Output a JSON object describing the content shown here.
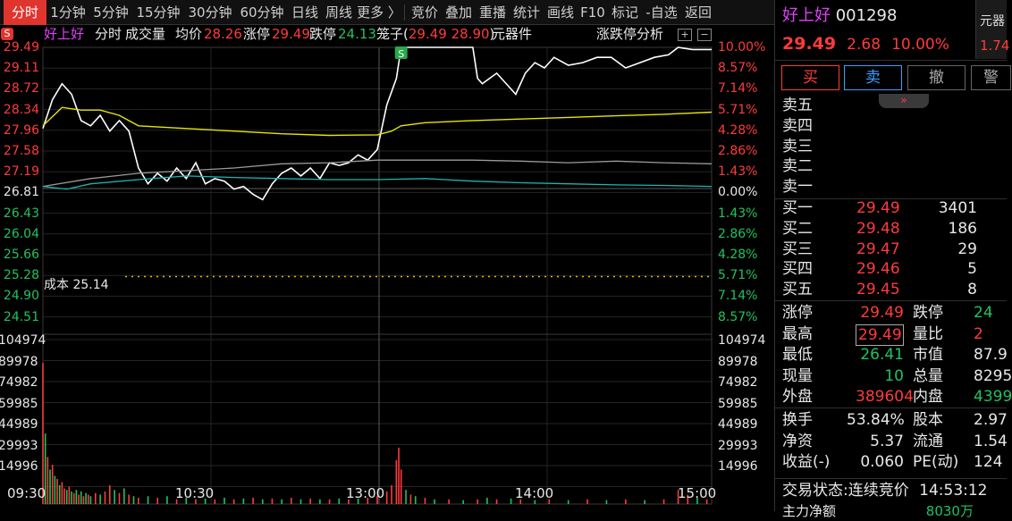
{
  "toolbar": {
    "tabs": [
      {
        "label": "分时",
        "active": true
      },
      {
        "label": "1分钟"
      },
      {
        "label": "5分钟"
      },
      {
        "label": "15分钟"
      },
      {
        "label": "30分钟"
      },
      {
        "label": "60分钟"
      },
      {
        "label": "日线"
      },
      {
        "label": "周线"
      },
      {
        "label": "更多 〉"
      },
      {
        "label": "竞价"
      },
      {
        "label": "叠加"
      },
      {
        "label": "重播"
      },
      {
        "label": "统计"
      },
      {
        "label": "画线"
      },
      {
        "label": "F10"
      },
      {
        "label": "标记"
      },
      {
        "label": "-自选"
      },
      {
        "label": "返回"
      }
    ]
  },
  "chart_header": {
    "badge": "S",
    "stock_name": "好上好",
    "mode": "分时",
    "volume_label": "成交量",
    "avg_label": "均价",
    "avg_value": "28.26",
    "limit_up_label": "涨停",
    "limit_up_value": "29.49",
    "limit_down_label": "跌停",
    "limit_down_value": "24.13",
    "cage_prefix": "笼子(",
    "cage_v1": "29.49",
    "cage_v2": "28.90",
    "cage_suffix": ")",
    "tool": "元器件",
    "analysis": "涨跌停分析",
    "icon_plus": "+",
    "icon_minus": "−"
  },
  "price_axis": [
    {
      "price": "29.49",
      "pct": "10.00%",
      "dir": "up"
    },
    {
      "price": "29.11",
      "pct": "8.57%",
      "dir": "up"
    },
    {
      "price": "28.72",
      "pct": "7.14%",
      "dir": "up"
    },
    {
      "price": "28.34",
      "pct": "5.71%",
      "dir": "up"
    },
    {
      "price": "27.96",
      "pct": "4.28%",
      "dir": "up"
    },
    {
      "price": "27.58",
      "pct": "2.86%",
      "dir": "up"
    },
    {
      "price": "27.19",
      "pct": "1.43%",
      "dir": "up"
    },
    {
      "price": "26.81",
      "pct": "0.00%",
      "dir": "flat"
    },
    {
      "price": "26.43",
      "pct": "1.43%",
      "dir": "down"
    },
    {
      "price": "26.04",
      "pct": "2.86%",
      "dir": "down"
    },
    {
      "price": "25.66",
      "pct": "4.28%",
      "dir": "down"
    },
    {
      "price": "25.28",
      "pct": "5.71%",
      "dir": "down"
    },
    {
      "price": "24.90",
      "pct": "7.14%",
      "dir": "down"
    },
    {
      "price": "24.51",
      "pct": "8.57%",
      "dir": "down"
    }
  ],
  "volume_axis": [
    "104974",
    "89978",
    "74982",
    "59985",
    "44989",
    "29993",
    "14996"
  ],
  "time_axis": [
    "09:30",
    "10:30",
    "13:00",
    "14:00",
    "15:00"
  ],
  "cost_line": {
    "label": "成本 25.14",
    "price": 25.14
  },
  "signal_marker": "S",
  "colors": {
    "up": "#ff3b3b",
    "down": "#21c25e",
    "price_line": "#ffffff",
    "avg_line": "#e6e600",
    "gray_line": "#9a9a9a",
    "cyan_line": "#19b6b6",
    "toolbar_active": "#e0342e"
  },
  "chart_data": {
    "type": "line",
    "x_range": [
      "09:30",
      "15:00"
    ],
    "ylim": [
      24.13,
      29.49
    ],
    "prev_close": 26.81,
    "series": [
      {
        "name": "price",
        "points": [
          [
            0,
            27.95
          ],
          [
            4,
            28.5
          ],
          [
            8,
            28.8
          ],
          [
            12,
            28.6
          ],
          [
            16,
            28.1
          ],
          [
            20,
            28.0
          ],
          [
            24,
            28.2
          ],
          [
            28,
            27.9
          ],
          [
            32,
            28.1
          ],
          [
            36,
            27.9
          ],
          [
            40,
            27.2
          ],
          [
            44,
            26.9
          ],
          [
            48,
            27.1
          ],
          [
            52,
            26.95
          ],
          [
            56,
            27.2
          ],
          [
            60,
            27.0
          ],
          [
            64,
            27.3
          ],
          [
            68,
            26.9
          ],
          [
            72,
            27.0
          ],
          [
            76,
            26.95
          ],
          [
            80,
            26.8
          ],
          [
            84,
            26.85
          ],
          [
            88,
            26.7
          ],
          [
            92,
            26.6
          ],
          [
            96,
            26.9
          ],
          [
            100,
            27.1
          ],
          [
            104,
            27.2
          ],
          [
            108,
            27.05
          ],
          [
            112,
            27.2
          ],
          [
            116,
            27.0
          ],
          [
            120,
            27.3
          ],
          [
            124,
            27.25
          ],
          [
            128,
            27.3
          ],
          [
            132,
            27.45
          ],
          [
            136,
            27.35
          ],
          [
            140,
            27.55
          ],
          [
            144,
            28.4
          ],
          [
            148,
            28.9
          ],
          [
            150,
            29.49
          ],
          [
            160,
            29.49
          ],
          [
            170,
            29.49
          ],
          [
            180,
            29.49
          ],
          [
            182,
            28.9
          ],
          [
            184,
            28.8
          ],
          [
            190,
            29.0
          ],
          [
            196,
            28.7
          ],
          [
            198,
            28.6
          ],
          [
            202,
            29.0
          ],
          [
            206,
            29.2
          ],
          [
            210,
            29.1
          ],
          [
            214,
            29.3
          ],
          [
            220,
            29.15
          ],
          [
            226,
            29.2
          ],
          [
            232,
            29.3
          ],
          [
            238,
            29.3
          ],
          [
            244,
            29.1
          ],
          [
            250,
            29.2
          ],
          [
            256,
            29.3
          ],
          [
            262,
            29.35
          ],
          [
            266,
            29.49
          ],
          [
            272,
            29.45
          ],
          [
            280,
            29.45
          ]
        ]
      },
      {
        "name": "avg",
        "points": [
          [
            0,
            28.0
          ],
          [
            8,
            28.35
          ],
          [
            16,
            28.3
          ],
          [
            24,
            28.3
          ],
          [
            32,
            28.2
          ],
          [
            40,
            28.0
          ],
          [
            60,
            27.95
          ],
          [
            80,
            27.9
          ],
          [
            100,
            27.85
          ],
          [
            120,
            27.82
          ],
          [
            140,
            27.83
          ],
          [
            146,
            27.9
          ],
          [
            150,
            28.0
          ],
          [
            160,
            28.06
          ],
          [
            180,
            28.1
          ],
          [
            200,
            28.13
          ],
          [
            220,
            28.16
          ],
          [
            240,
            28.19
          ],
          [
            260,
            28.22
          ],
          [
            280,
            28.26
          ]
        ]
      },
      {
        "name": "series_gray",
        "points": [
          [
            0,
            26.85
          ],
          [
            20,
            27.0
          ],
          [
            40,
            27.1
          ],
          [
            60,
            27.15
          ],
          [
            80,
            27.2
          ],
          [
            100,
            27.28
          ],
          [
            120,
            27.3
          ],
          [
            140,
            27.35
          ],
          [
            160,
            27.35
          ],
          [
            180,
            27.35
          ],
          [
            200,
            27.33
          ],
          [
            220,
            27.3
          ],
          [
            240,
            27.33
          ],
          [
            260,
            27.3
          ],
          [
            280,
            27.28
          ]
        ]
      },
      {
        "name": "series_cyan",
        "points": [
          [
            0,
            26.85
          ],
          [
            10,
            26.8
          ],
          [
            20,
            26.9
          ],
          [
            40,
            26.98
          ],
          [
            60,
            27.05
          ],
          [
            80,
            27.02
          ],
          [
            100,
            27.0
          ],
          [
            120,
            26.98
          ],
          [
            140,
            26.98
          ],
          [
            160,
            27.0
          ],
          [
            180,
            26.95
          ],
          [
            200,
            26.92
          ],
          [
            220,
            26.9
          ],
          [
            240,
            26.88
          ],
          [
            260,
            26.87
          ],
          [
            280,
            26.85
          ]
        ]
      }
    ],
    "volume": {
      "max": 104974,
      "bars": [
        [
          0,
          90000,
          "up"
        ],
        [
          1,
          45000,
          "down"
        ],
        [
          2,
          30000,
          "up"
        ],
        [
          3,
          22000,
          "down"
        ],
        [
          4,
          25000,
          "up"
        ],
        [
          5,
          18000,
          "down"
        ],
        [
          6,
          16000,
          "up"
        ],
        [
          7,
          12000,
          "down"
        ],
        [
          8,
          14000,
          "up"
        ],
        [
          9,
          10000,
          "up"
        ],
        [
          10,
          9000,
          "down"
        ],
        [
          11,
          11000,
          "up"
        ],
        [
          12,
          8000,
          "down"
        ],
        [
          13,
          7000,
          "up"
        ],
        [
          14,
          9000,
          "down"
        ],
        [
          15,
          6000,
          "up"
        ],
        [
          16,
          8000,
          "down"
        ],
        [
          17,
          5000,
          "up"
        ],
        [
          18,
          7000,
          "down"
        ],
        [
          19,
          6000,
          "up"
        ],
        [
          20,
          5000,
          "down"
        ],
        [
          22,
          7000,
          "up"
        ],
        [
          24,
          6000,
          "down"
        ],
        [
          26,
          8000,
          "up"
        ],
        [
          28,
          12000,
          "up"
        ],
        [
          30,
          9000,
          "down"
        ],
        [
          32,
          7000,
          "up"
        ],
        [
          34,
          10000,
          "down"
        ],
        [
          36,
          6000,
          "up"
        ],
        [
          38,
          5000,
          "down"
        ],
        [
          40,
          4000,
          "up"
        ],
        [
          44,
          5000,
          "down"
        ],
        [
          48,
          4000,
          "up"
        ],
        [
          52,
          5000,
          "down"
        ],
        [
          56,
          3000,
          "up"
        ],
        [
          60,
          4000,
          "down"
        ],
        [
          64,
          3000,
          "up"
        ],
        [
          68,
          3500,
          "down"
        ],
        [
          72,
          3000,
          "up"
        ],
        [
          76,
          4000,
          "down"
        ],
        [
          80,
          3000,
          "up"
        ],
        [
          84,
          3500,
          "down"
        ],
        [
          88,
          4000,
          "up"
        ],
        [
          92,
          3000,
          "down"
        ],
        [
          96,
          3500,
          "up"
        ],
        [
          100,
          3000,
          "down"
        ],
        [
          104,
          4000,
          "up"
        ],
        [
          108,
          3000,
          "down"
        ],
        [
          112,
          3500,
          "up"
        ],
        [
          116,
          3000,
          "down"
        ],
        [
          120,
          3000,
          "up"
        ],
        [
          124,
          3500,
          "down"
        ],
        [
          128,
          3000,
          "up"
        ],
        [
          132,
          3500,
          "down"
        ],
        [
          136,
          4000,
          "up"
        ],
        [
          140,
          5000,
          "up"
        ],
        [
          144,
          8000,
          "up"
        ],
        [
          146,
          12000,
          "up"
        ],
        [
          148,
          28000,
          "up"
        ],
        [
          149,
          36000,
          "up"
        ],
        [
          150,
          22000,
          "up"
        ],
        [
          152,
          9000,
          "down"
        ],
        [
          154,
          6000,
          "up"
        ],
        [
          156,
          5000,
          "down"
        ],
        [
          160,
          4000,
          "up"
        ],
        [
          164,
          3000,
          "down"
        ],
        [
          170,
          3000,
          "up"
        ],
        [
          176,
          2500,
          "down"
        ],
        [
          182,
          3000,
          "up"
        ],
        [
          186,
          4000,
          "down"
        ],
        [
          190,
          3000,
          "up"
        ],
        [
          196,
          3500,
          "down"
        ],
        [
          200,
          3000,
          "up"
        ],
        [
          206,
          2500,
          "down"
        ],
        [
          212,
          3000,
          "up"
        ],
        [
          220,
          2500,
          "down"
        ],
        [
          228,
          3000,
          "up"
        ],
        [
          236,
          2500,
          "down"
        ],
        [
          244,
          3000,
          "up"
        ],
        [
          252,
          2500,
          "down"
        ],
        [
          260,
          3000,
          "up"
        ],
        [
          266,
          9000,
          "up"
        ],
        [
          270,
          6000,
          "up"
        ],
        [
          274,
          4000,
          "down"
        ],
        [
          278,
          3000,
          "up"
        ]
      ]
    }
  },
  "quote": {
    "name": "好上好",
    "code": "001298",
    "price": "29.49",
    "change": "2.68",
    "change_pct": "10.00%",
    "side_tag": "元器",
    "side_val": "1.74",
    "buttons": [
      {
        "label": "买",
        "color": "#ff3b3b"
      },
      {
        "label": "卖",
        "color": "#3aa0ff"
      },
      {
        "label": "撤",
        "color": "#aaaaaa"
      },
      {
        "label": "警",
        "color": "#aaaaaa"
      }
    ],
    "collapse_icon": "»",
    "asks": [
      {
        "label": "卖五"
      },
      {
        "label": "卖四"
      },
      {
        "label": "卖三"
      },
      {
        "label": "卖二"
      },
      {
        "label": "卖一"
      }
    ],
    "bids": [
      {
        "label": "买一",
        "price": "29.49",
        "vol": "3401"
      },
      {
        "label": "买二",
        "price": "29.48",
        "vol": "186"
      },
      {
        "label": "买三",
        "price": "29.47",
        "vol": "29"
      },
      {
        "label": "买四",
        "price": "29.46",
        "vol": "5"
      },
      {
        "label": "买五",
        "price": "29.45",
        "vol": "8"
      }
    ],
    "stats": [
      {
        "l1": "涨停",
        "v1": "29.49",
        "c1": "red",
        "l2": "跌停",
        "v2": "24",
        "c2": "green"
      },
      {
        "l1": "最高",
        "v1": "29.49",
        "c1": "red",
        "l2": "量比",
        "v2": "2",
        "c2": "red"
      },
      {
        "l1": "最低",
        "v1": "26.41",
        "c1": "green",
        "l2": "市值",
        "v2": "87.9",
        "c2": "white"
      },
      {
        "l1": "现量",
        "v1": "10",
        "c1": "green",
        "l2": "总量",
        "v2": "8295",
        "c2": "white"
      },
      {
        "l1": "外盘",
        "v1": "389604",
        "c1": "red",
        "l2": "内盘",
        "v2": "4399",
        "c2": "green"
      }
    ],
    "stats2": [
      {
        "l1": "换手",
        "v1": "53.84%",
        "l2": "股本",
        "v2": "2.97"
      },
      {
        "l1": "净资",
        "v1": "5.37",
        "l2": "流通",
        "v2": "1.54"
      },
      {
        "l1": "收益(-)",
        "v1": "0.060",
        "l2": "PE(动)",
        "v2": "124"
      }
    ],
    "trade_status_label": "交易状态:",
    "trade_status": "连续竞价",
    "trade_time": "14:53:12",
    "footer_partial": "主力净额",
    "footer_partial_val": "8030万"
  }
}
